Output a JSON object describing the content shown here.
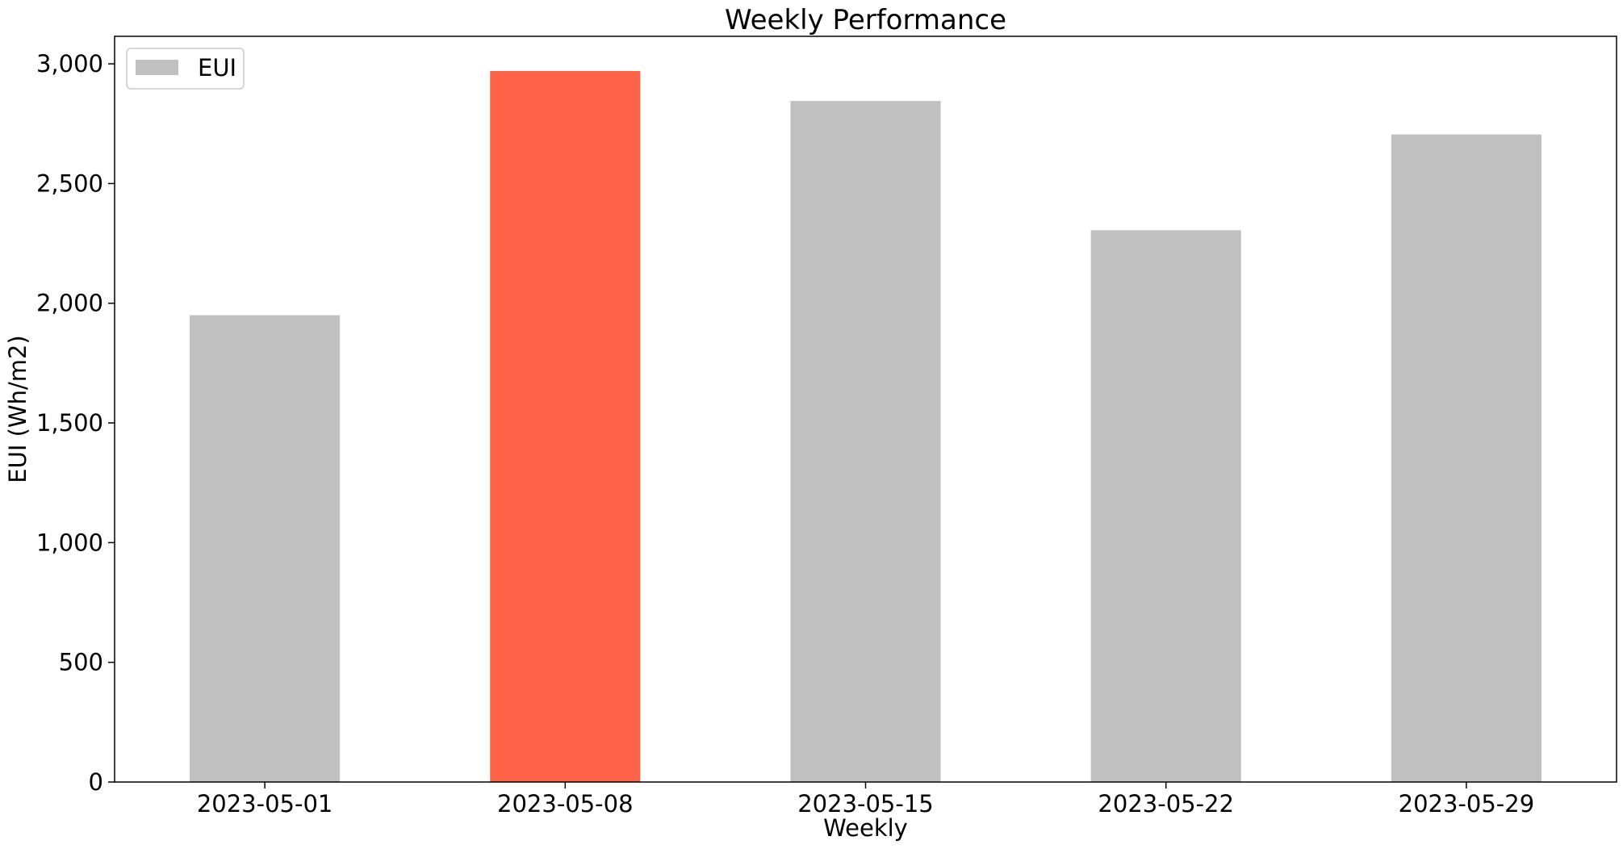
{
  "chart_data": {
    "type": "bar",
    "title": "Weekly Performance",
    "xlabel": "Weekly",
    "ylabel": "EUI (Wh/m2)",
    "categories": [
      "2023-05-01",
      "2023-05-08",
      "2023-05-15",
      "2023-05-22",
      "2023-05-29"
    ],
    "series": [
      {
        "name": "EUI",
        "values": [
          1950,
          2970,
          2845,
          2305,
          2705
        ],
        "color": "#c0c0c0"
      }
    ],
    "highlight": {
      "category": "2023-05-08",
      "color": "#ff6347"
    },
    "ylim": [
      0,
      3115
    ],
    "yticks": [
      0,
      500,
      1000,
      1500,
      2000,
      2500,
      3000
    ],
    "ytick_labels": [
      "0",
      "500",
      "1,000",
      "1,500",
      "2,000",
      "2,500",
      "3,000"
    ],
    "grid": false,
    "legend": {
      "placement": "top-left",
      "entries": [
        "EUI"
      ]
    }
  }
}
